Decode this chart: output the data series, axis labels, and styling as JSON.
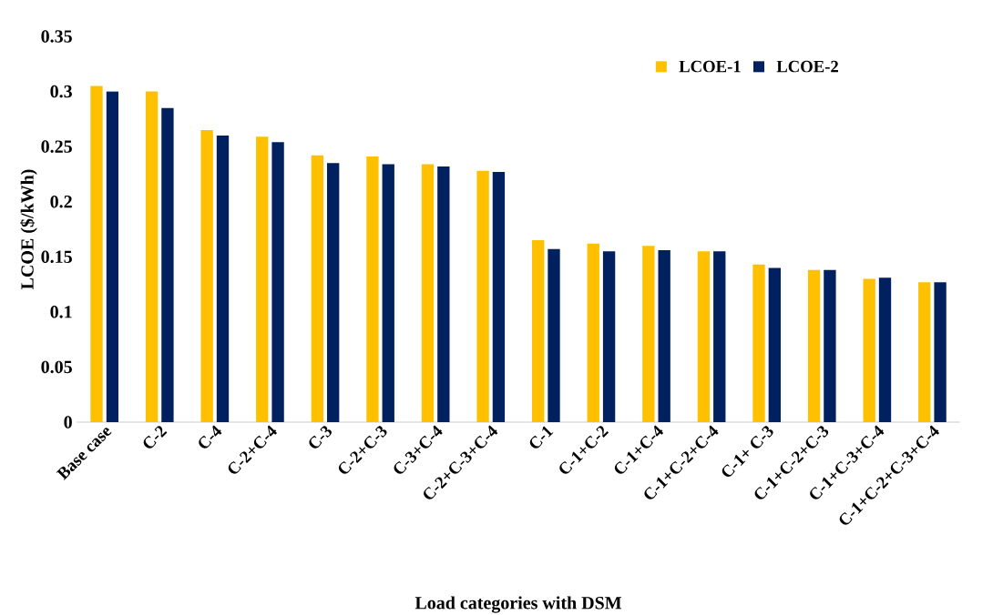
{
  "chart_data": {
    "type": "bar",
    "xlabel": "Load categories with DSM",
    "ylabel": "LCOE ($/kWh)",
    "categories": [
      "Base case",
      "C-2",
      "C-4",
      "C-2+C-4",
      "C-3",
      "C-2+C-3",
      "C-3+C-4",
      "C-2+C-3+C-4",
      "C-1",
      "C-1+C-2",
      "C-1+C-4",
      "C-1+C-2+C-4",
      "C-1+ C-3",
      "C-1+C-2+C-3",
      "C-1+C-3+C-4",
      "C-1+C-2+C-3+C-4"
    ],
    "series": [
      {
        "name": "LCOE-1",
        "color": "#ffc000",
        "values": [
          0.305,
          0.3,
          0.265,
          0.259,
          0.242,
          0.241,
          0.234,
          0.228,
          0.165,
          0.162,
          0.16,
          0.155,
          0.143,
          0.138,
          0.13,
          0.127
        ]
      },
      {
        "name": "LCOE-2",
        "color": "#002060",
        "values": [
          0.3,
          0.285,
          0.26,
          0.254,
          0.235,
          0.234,
          0.232,
          0.227,
          0.157,
          0.155,
          0.156,
          0.155,
          0.14,
          0.138,
          0.131,
          0.127
        ]
      }
    ],
    "ylim": [
      0,
      0.35
    ],
    "yticks": [
      0,
      0.05,
      0.1,
      0.15,
      0.2,
      0.25,
      0.3,
      0.35
    ],
    "grid": false,
    "legend": "top right"
  }
}
